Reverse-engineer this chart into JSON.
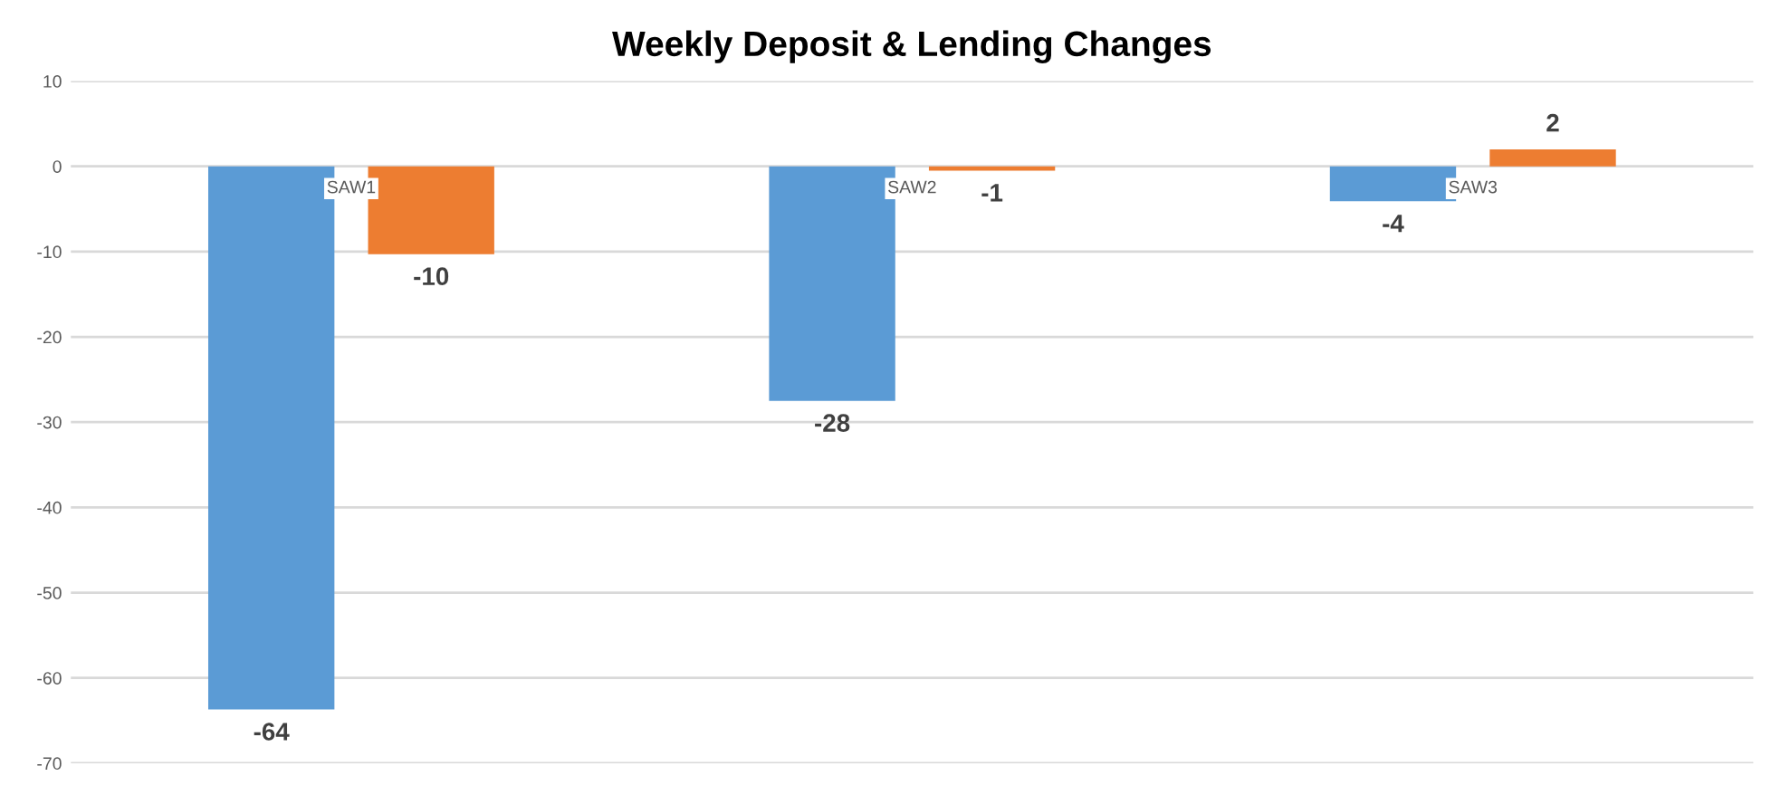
{
  "chart_data": {
    "type": "bar",
    "title": "Weekly Deposit & Lending Changes",
    "categories": [
      "SAW1",
      "SAW2",
      "SAW3"
    ],
    "series": [
      {
        "color": "#5b9bd5",
        "values": [
          -63.7,
          -27.5,
          -4.1
        ],
        "value_labels": [
          "-64",
          "-28",
          "-4"
        ]
      },
      {
        "color": "#ed7d31",
        "values": [
          -10.3,
          -0.5,
          2.0
        ],
        "value_labels": [
          "-10",
          "-1",
          "2"
        ]
      }
    ],
    "ylim": [
      -70,
      10
    ],
    "yticks": [
      -70,
      -60,
      -50,
      -40,
      -30,
      -20,
      -10,
      0,
      10
    ],
    "grid": "y",
    "legend": false
  }
}
